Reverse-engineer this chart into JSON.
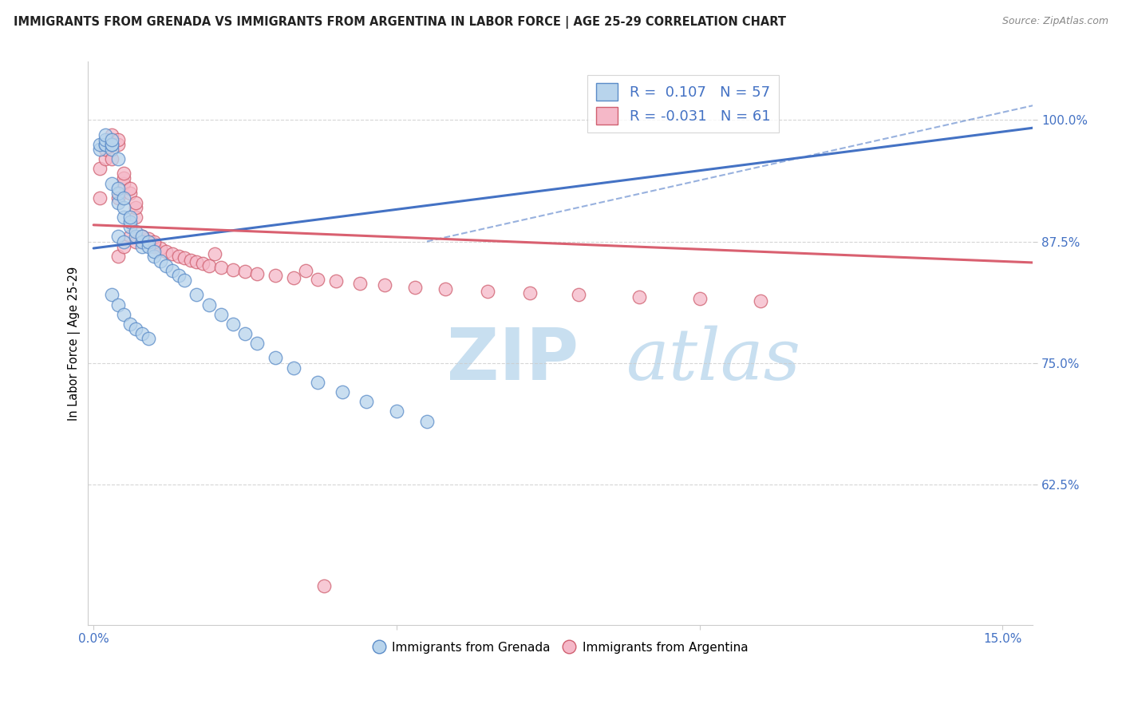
{
  "title": "IMMIGRANTS FROM GRENADA VS IMMIGRANTS FROM ARGENTINA IN LABOR FORCE | AGE 25-29 CORRELATION CHART",
  "source": "Source: ZipAtlas.com",
  "ylabel": "In Labor Force | Age 25-29",
  "xlim": [
    -0.001,
    0.155
  ],
  "ylim": [
    0.48,
    1.06
  ],
  "xtick_positions": [
    0.0,
    0.05,
    0.1,
    0.15
  ],
  "xticklabels": [
    "0.0%",
    "",
    "",
    "15.0%"
  ],
  "ytick_positions": [
    0.625,
    0.75,
    0.875,
    1.0
  ],
  "ytick_labels": [
    "62.5%",
    "75.0%",
    "87.5%",
    "100.0%"
  ],
  "R_grenada": 0.107,
  "N_grenada": 57,
  "R_argentina": -0.031,
  "N_argentina": 61,
  "color_grenada_fill": "#b8d4ec",
  "color_grenada_edge": "#5b8cc8",
  "color_argentina_fill": "#f5b8c8",
  "color_argentina_edge": "#d06070",
  "color_grenada_line": "#4472c4",
  "color_argentina_line": "#d96070",
  "color_axis_text": "#4472c4",
  "watermark_zip_color": "#c8dff0",
  "watermark_atlas_color": "#c8dff0",
  "trend_dashed_color": "#4472c4",
  "grenada_x": [
    0.001,
    0.001,
    0.002,
    0.002,
    0.002,
    0.002,
    0.003,
    0.003,
    0.003,
    0.003,
    0.003,
    0.004,
    0.004,
    0.004,
    0.004,
    0.004,
    0.005,
    0.005,
    0.005,
    0.005,
    0.006,
    0.006,
    0.006,
    0.007,
    0.007,
    0.008,
    0.008,
    0.008,
    0.009,
    0.009,
    0.01,
    0.01,
    0.011,
    0.012,
    0.013,
    0.014,
    0.015,
    0.017,
    0.019,
    0.021,
    0.023,
    0.025,
    0.027,
    0.03,
    0.033,
    0.037,
    0.041,
    0.045,
    0.05,
    0.055,
    0.003,
    0.004,
    0.005,
    0.006,
    0.007,
    0.008,
    0.009
  ],
  "grenada_y": [
    0.97,
    0.975,
    0.975,
    0.975,
    0.98,
    0.985,
    0.97,
    0.975,
    0.975,
    0.98,
    0.935,
    0.88,
    0.915,
    0.925,
    0.93,
    0.96,
    0.875,
    0.9,
    0.91,
    0.92,
    0.89,
    0.895,
    0.9,
    0.88,
    0.885,
    0.87,
    0.875,
    0.88,
    0.87,
    0.875,
    0.86,
    0.865,
    0.855,
    0.85,
    0.845,
    0.84,
    0.835,
    0.82,
    0.81,
    0.8,
    0.79,
    0.78,
    0.77,
    0.755,
    0.745,
    0.73,
    0.72,
    0.71,
    0.7,
    0.69,
    0.82,
    0.81,
    0.8,
    0.79,
    0.785,
    0.78,
    0.775
  ],
  "argentina_x": [
    0.001,
    0.001,
    0.002,
    0.002,
    0.003,
    0.003,
    0.003,
    0.003,
    0.004,
    0.004,
    0.004,
    0.005,
    0.005,
    0.005,
    0.006,
    0.006,
    0.006,
    0.007,
    0.007,
    0.007,
    0.008,
    0.008,
    0.009,
    0.009,
    0.01,
    0.01,
    0.011,
    0.012,
    0.013,
    0.014,
    0.015,
    0.016,
    0.017,
    0.018,
    0.019,
    0.021,
    0.023,
    0.025,
    0.027,
    0.03,
    0.033,
    0.037,
    0.04,
    0.044,
    0.048,
    0.053,
    0.058,
    0.065,
    0.072,
    0.08,
    0.09,
    0.1,
    0.11,
    0.004,
    0.005,
    0.007,
    0.008,
    0.01,
    0.02,
    0.035,
    0.038
  ],
  "argentina_y": [
    0.92,
    0.95,
    0.96,
    0.97,
    0.96,
    0.975,
    0.98,
    0.985,
    0.975,
    0.98,
    0.92,
    0.935,
    0.94,
    0.945,
    0.88,
    0.925,
    0.93,
    0.9,
    0.91,
    0.915,
    0.875,
    0.88,
    0.875,
    0.878,
    0.87,
    0.872,
    0.868,
    0.865,
    0.862,
    0.86,
    0.858,
    0.856,
    0.854,
    0.852,
    0.85,
    0.848,
    0.846,
    0.844,
    0.842,
    0.84,
    0.838,
    0.836,
    0.834,
    0.832,
    0.83,
    0.828,
    0.826,
    0.824,
    0.822,
    0.82,
    0.818,
    0.816,
    0.814,
    0.86,
    0.87,
    0.875,
    0.88,
    0.875,
    0.862,
    0.845,
    0.52
  ]
}
